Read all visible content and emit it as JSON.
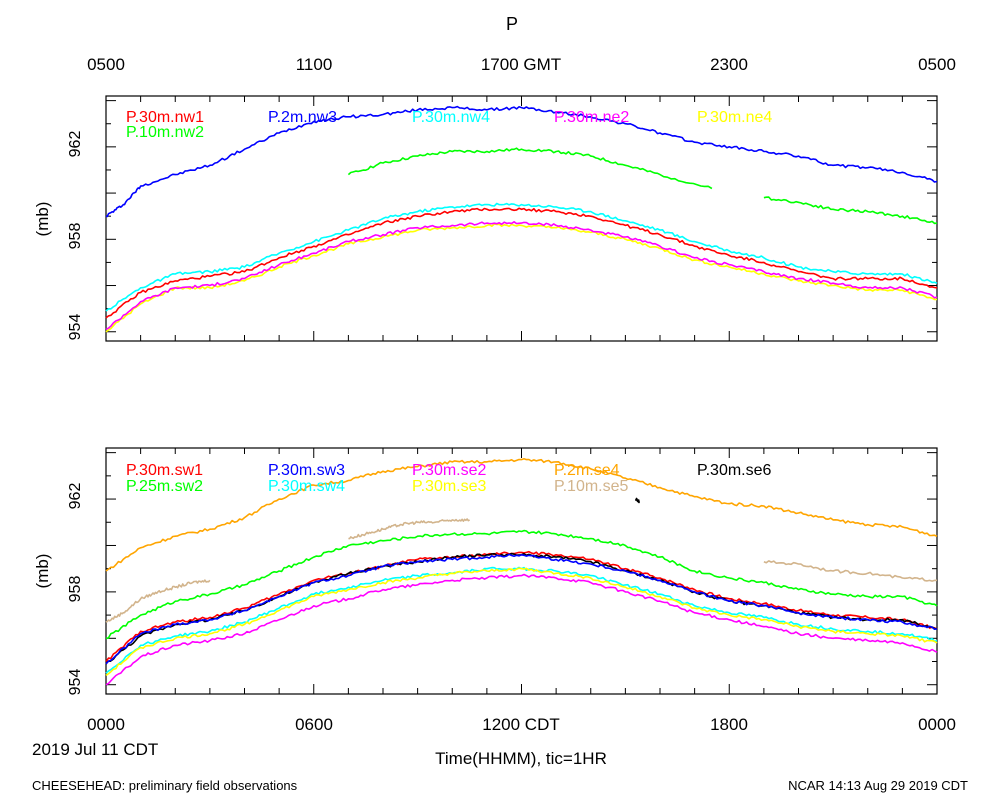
{
  "figure": {
    "title": "P",
    "top_axis_labels": [
      "0500",
      "1100",
      "1700 GMT",
      "2300",
      "0500"
    ],
    "bottom_axis_labels": [
      "0000",
      "0600",
      "1200 CDT",
      "1800",
      "0000"
    ],
    "date_label": "2019 Jul 11 CDT",
    "xlabel": "Time(HHMM), tic=1HR",
    "footer_left": "CHEESEHEAD: preliminary field observations",
    "footer_right": "NCAR 14:13 Aug 29 2019 CDT"
  },
  "chart_data": [
    {
      "type": "line",
      "name": "top-panel",
      "ylabel": "(mb)",
      "ylim": [
        953.6,
        964.2
      ],
      "yticks": [
        954,
        958,
        962
      ],
      "xlim": [
        0,
        24
      ],
      "x_units": "hours since 0000 CDT, 2019 Jul 11",
      "legend": [
        "P.30m.nw1",
        "P.2m.nw3",
        "P.30m.nw4",
        "P.30m.ne2",
        "P.30m.ne4",
        "P.10m.nw2"
      ],
      "series": [
        {
          "name": "P.2m.nw3",
          "color": "#0000ff",
          "x": [
            0,
            0.5,
            1,
            2,
            3,
            4,
            5,
            6,
            7,
            8,
            9,
            10,
            11,
            12,
            13,
            14,
            15,
            16,
            17,
            18,
            19,
            20,
            21,
            22,
            23,
            24
          ],
          "y": [
            959.0,
            959.5,
            960.3,
            960.8,
            961.2,
            961.9,
            962.6,
            963.1,
            963.3,
            963.4,
            963.6,
            963.7,
            963.6,
            963.7,
            963.5,
            963.3,
            963.0,
            962.6,
            962.2,
            962.0,
            961.8,
            961.6,
            961.2,
            961.1,
            960.9,
            960.5
          ]
        },
        {
          "name": "P.10m.nw2",
          "color": "#00ff00",
          "x": [
            7,
            8,
            9,
            10,
            11,
            12,
            13,
            14,
            15,
            16,
            17.5
          ],
          "y": [
            960.8,
            961.3,
            961.6,
            961.8,
            961.8,
            961.9,
            961.8,
            961.6,
            961.2,
            960.8,
            960.2
          ]
        },
        {
          "name": "P.10m.nw2",
          "color": "#00ff00",
          "x": [
            19,
            20,
            21,
            22,
            23,
            24
          ],
          "y": [
            959.8,
            959.6,
            959.3,
            959.2,
            959.0,
            958.7
          ]
        },
        {
          "name": "P.30m.nw4",
          "color": "#00ffff",
          "x": [
            0,
            1,
            2,
            3,
            4,
            5,
            6,
            7,
            8,
            9,
            10,
            11,
            12,
            13,
            14,
            15,
            16,
            17,
            18,
            19,
            20,
            21,
            22,
            23,
            24
          ],
          "y": [
            954.9,
            955.9,
            956.5,
            956.6,
            956.8,
            957.4,
            957.9,
            958.4,
            958.9,
            959.2,
            959.4,
            959.5,
            959.5,
            959.4,
            959.2,
            958.8,
            958.4,
            957.9,
            957.5,
            957.2,
            956.8,
            956.6,
            956.5,
            956.5,
            956.1
          ]
        },
        {
          "name": "P.30m.nw1",
          "color": "#ff0000",
          "x": [
            0,
            1,
            2,
            3,
            4,
            5,
            6,
            7,
            8,
            9,
            10,
            11,
            12,
            13,
            14,
            15,
            16,
            17,
            18,
            19,
            20,
            21,
            22,
            23,
            24
          ],
          "y": [
            954.6,
            955.7,
            956.2,
            956.4,
            956.6,
            957.2,
            957.7,
            958.2,
            958.7,
            959.0,
            959.2,
            959.3,
            959.3,
            959.2,
            959.0,
            958.6,
            958.2,
            957.7,
            957.3,
            957.0,
            956.6,
            956.3,
            956.3,
            956.3,
            955.9
          ]
        },
        {
          "name": "P.30m.ne4",
          "color": "#ffff00",
          "x": [
            0,
            1,
            2,
            3,
            4,
            5,
            6,
            7,
            8,
            9,
            10,
            11,
            12,
            13,
            14,
            15,
            16,
            17,
            18,
            19,
            20,
            21,
            22,
            23,
            24
          ],
          "y": [
            954.0,
            955.2,
            955.9,
            955.9,
            956.2,
            956.8,
            957.3,
            957.8,
            958.1,
            958.4,
            958.5,
            958.6,
            958.6,
            958.5,
            958.3,
            958.0,
            957.6,
            957.1,
            956.8,
            956.5,
            956.2,
            956.0,
            955.8,
            955.8,
            955.4
          ]
        },
        {
          "name": "P.30m.ne2",
          "color": "#ff00ff",
          "x": [
            0,
            1,
            2,
            3,
            4,
            5,
            6,
            7,
            8,
            9,
            10,
            11,
            12,
            13,
            14,
            15,
            16,
            17,
            18,
            19,
            20,
            21,
            22,
            23,
            24
          ],
          "y": [
            954.1,
            955.3,
            955.9,
            956.0,
            956.3,
            956.9,
            957.4,
            957.9,
            958.2,
            958.5,
            958.6,
            958.7,
            958.7,
            958.6,
            958.4,
            958.1,
            957.7,
            957.2,
            956.9,
            956.6,
            956.3,
            956.1,
            955.9,
            955.9,
            955.5
          ]
        }
      ]
    },
    {
      "type": "line",
      "name": "bottom-panel",
      "ylabel": "(mb)",
      "ylim": [
        953.6,
        964.2
      ],
      "yticks": [
        954,
        958,
        962
      ],
      "xlim": [
        0,
        24
      ],
      "x_units": "hours since 0000 CDT, 2019 Jul 11",
      "legend": [
        "P.30m.sw1",
        "P.30m.sw3",
        "P.30m.se2",
        "P.2m.se4",
        "P.30m.se6",
        "P.25m.sw2",
        "P.30m.sw4",
        "P.30m.se3",
        "P.10m.se5"
      ],
      "series": [
        {
          "name": "P.2m.se4",
          "color": "#ffa500",
          "x": [
            0,
            1,
            2,
            3,
            4,
            5,
            6,
            7,
            8,
            9,
            10,
            11,
            12,
            13,
            14,
            15,
            16,
            17,
            18,
            19,
            20,
            21,
            22,
            23,
            24
          ],
          "y": [
            958.9,
            959.9,
            960.4,
            960.7,
            961.2,
            962.0,
            962.6,
            962.8,
            963.2,
            963.4,
            963.6,
            963.6,
            963.7,
            963.6,
            963.3,
            962.9,
            962.5,
            962.1,
            961.8,
            961.7,
            961.4,
            961.1,
            960.9,
            960.8,
            960.4
          ]
        },
        {
          "name": "P.10m.se5",
          "color": "#d2b48c",
          "x": [
            0,
            0.5,
            1,
            1.5,
            2,
            2.5,
            3
          ],
          "y": [
            956.7,
            957.1,
            957.7,
            958.0,
            958.2,
            958.4,
            958.5
          ]
        },
        {
          "name": "P.10m.se5",
          "color": "#d2b48c",
          "x": [
            7,
            7.5,
            8,
            8.5,
            9,
            9.5,
            10,
            10.5
          ],
          "y": [
            960.3,
            960.5,
            960.7,
            960.9,
            961.0,
            961.0,
            961.1,
            961.1
          ]
        },
        {
          "name": "P.10m.se5",
          "color": "#d2b48c",
          "x": [
            19,
            20,
            21,
            22,
            23,
            24
          ],
          "y": [
            959.3,
            959.2,
            958.9,
            958.8,
            958.6,
            958.5
          ]
        },
        {
          "name": "P.25m.sw2",
          "color": "#00ff00",
          "x": [
            0,
            1,
            2,
            3,
            4,
            5,
            6,
            7,
            8,
            9,
            10,
            11,
            12,
            13,
            14,
            15,
            16,
            17,
            18,
            19,
            20,
            21,
            22,
            23,
            24
          ],
          "y": [
            956.0,
            957.0,
            957.6,
            957.9,
            958.3,
            958.9,
            959.5,
            960.0,
            960.2,
            960.4,
            960.5,
            960.5,
            960.6,
            960.5,
            960.3,
            960.0,
            959.5,
            958.9,
            958.6,
            958.4,
            958.1,
            957.9,
            957.8,
            957.8,
            957.4
          ]
        },
        {
          "name": "P.30m.sw1",
          "color": "#ff0000",
          "x": [
            0,
            1,
            2,
            3,
            4,
            5,
            6,
            7,
            8,
            9,
            10,
            11,
            12,
            13,
            14,
            15,
            16,
            17,
            18,
            19,
            20,
            21,
            22,
            23,
            24
          ],
          "y": [
            955.0,
            956.3,
            956.7,
            956.9,
            957.3,
            957.9,
            958.5,
            958.8,
            959.1,
            959.4,
            959.5,
            959.6,
            959.7,
            959.6,
            959.4,
            959.0,
            958.6,
            958.1,
            957.7,
            957.5,
            957.2,
            957.0,
            956.9,
            956.8,
            956.4
          ]
        },
        {
          "name": "P.30m.se6",
          "color": "#000000",
          "x": [
            0,
            1,
            2,
            3,
            4,
            5,
            6,
            7,
            8,
            9,
            10,
            11,
            12,
            13,
            14,
            15,
            16,
            17,
            18,
            19,
            20,
            21,
            22,
            23,
            24
          ],
          "y": [
            954.9,
            956.1,
            956.6,
            956.8,
            957.2,
            957.8,
            958.4,
            958.8,
            959.1,
            959.3,
            959.5,
            959.6,
            959.6,
            959.5,
            959.3,
            958.9,
            958.5,
            958.0,
            957.6,
            957.4,
            957.1,
            956.9,
            956.8,
            956.8,
            956.4
          ]
        },
        {
          "name": "P.30m.sw3",
          "color": "#0000ff",
          "x": [
            0,
            1,
            2,
            3,
            4,
            5,
            6,
            7,
            8,
            9,
            10,
            11,
            12,
            13,
            14,
            15,
            16,
            17,
            18,
            19,
            20,
            21,
            22,
            23,
            24
          ],
          "y": [
            954.9,
            956.2,
            956.6,
            956.8,
            957.2,
            957.8,
            958.4,
            958.7,
            959.1,
            959.3,
            959.4,
            959.5,
            959.6,
            959.4,
            959.2,
            958.9,
            958.5,
            958.0,
            957.6,
            957.4,
            957.1,
            956.9,
            956.8,
            956.7,
            956.4
          ]
        },
        {
          "name": "P.30m.sw4",
          "color": "#00ffff",
          "x": [
            0,
            1,
            2,
            3,
            4,
            5,
            6,
            7,
            8,
            9,
            10,
            11,
            12,
            13,
            14,
            15,
            16,
            17,
            18,
            19,
            20,
            21,
            22,
            23,
            24
          ],
          "y": [
            954.5,
            955.7,
            956.1,
            956.3,
            956.7,
            957.3,
            957.9,
            958.2,
            958.5,
            958.7,
            958.8,
            959.0,
            959.0,
            958.9,
            958.7,
            958.3,
            957.9,
            957.4,
            957.1,
            956.9,
            956.6,
            956.4,
            956.3,
            956.2,
            955.9
          ]
        },
        {
          "name": "P.30m.se3",
          "color": "#ffff00",
          "x": [
            0,
            1,
            2,
            3,
            4,
            5,
            6,
            7,
            8,
            9,
            10,
            11,
            12,
            13,
            14,
            15,
            16,
            17,
            18,
            19,
            20,
            21,
            22,
            23,
            24
          ],
          "y": [
            954.4,
            955.6,
            956.0,
            956.2,
            956.6,
            957.2,
            957.8,
            958.1,
            958.4,
            958.6,
            958.8,
            958.9,
            959.0,
            958.8,
            958.6,
            958.2,
            957.8,
            957.3,
            957.0,
            956.8,
            956.5,
            956.3,
            956.2,
            956.1,
            955.8
          ]
        },
        {
          "name": "P.30m.se2",
          "color": "#ff00ff",
          "x": [
            0,
            1,
            2,
            3,
            4,
            5,
            6,
            7,
            8,
            9,
            10,
            11,
            12,
            13,
            14,
            15,
            16,
            17,
            18,
            19,
            20,
            21,
            22,
            23,
            24
          ],
          "y": [
            954.0,
            955.2,
            955.7,
            955.9,
            956.2,
            956.8,
            957.4,
            957.7,
            958.1,
            958.3,
            958.5,
            958.6,
            958.7,
            958.6,
            958.4,
            958.0,
            957.6,
            957.1,
            956.8,
            956.5,
            956.2,
            956.0,
            955.9,
            955.8,
            955.4
          ]
        },
        {
          "name": "P.30m.se6",
          "color": "#000000",
          "x": [
            15.3,
            15.4
          ],
          "y": [
            962.0,
            961.9
          ]
        }
      ]
    }
  ],
  "legend_colors": {
    "top": [
      "#ff0000",
      "#0000ff",
      "#00ffff",
      "#ff00ff",
      "#ffff00",
      "#00ff00"
    ],
    "bottom": [
      "#ff0000",
      "#0000ff",
      "#ff00ff",
      "#ffa500",
      "#000000",
      "#00ff00",
      "#00ffff",
      "#ffff00",
      "#d2b48c"
    ]
  }
}
